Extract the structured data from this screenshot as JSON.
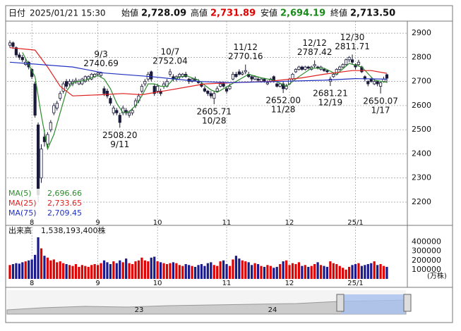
{
  "header": {
    "date_label": "日付",
    "date": "2025/01/21 15:30",
    "open_label": "始値",
    "open": "2,728.09",
    "high_label": "高値",
    "high": "2,731.89",
    "low_label": "安値",
    "low": "2,694.19",
    "close_label": "終値",
    "close": "2,713.50"
  },
  "chart_data": [
    {
      "type": "candlestick",
      "ylim": [
        2127,
        2950
      ],
      "yticks": [
        2200,
        2300,
        2400,
        2500,
        2600,
        2700,
        2800,
        2900
      ],
      "grid": true,
      "up_color": "#ffffff",
      "down_color": "#1a1a3a",
      "xticks": [
        {
          "value": 7,
          "label": "8"
        },
        {
          "value": 28,
          "label": "9"
        },
        {
          "value": 47,
          "label": "10"
        },
        {
          "value": 69,
          "label": "11"
        },
        {
          "value": 89,
          "label": "12"
        },
        {
          "value": 110,
          "label": "25/1"
        }
      ],
      "candles": [
        [
          2850,
          2870,
          2840,
          2860
        ],
        [
          2860,
          2865,
          2835,
          2845
        ],
        [
          2840,
          2845,
          2800,
          2810
        ],
        [
          2810,
          2820,
          2790,
          2800
        ],
        [
          2800,
          2810,
          2780,
          2790
        ],
        [
          2770,
          2795,
          2765,
          2780
        ],
        [
          2780,
          2785,
          2750,
          2760
        ],
        [
          2750,
          2755,
          2710,
          2720
        ],
        [
          2690,
          2700,
          2550,
          2560
        ],
        [
          2520,
          2530,
          2200,
          2230
        ],
        [
          2300,
          2440,
          2280,
          2420
        ],
        [
          2470,
          2500,
          2430,
          2450
        ],
        [
          2440,
          2490,
          2420,
          2480
        ],
        [
          2500,
          2540,
          2490,
          2530
        ],
        [
          2570,
          2610,
          2560,
          2600
        ],
        [
          2590,
          2620,
          2580,
          2610
        ],
        [
          2630,
          2660,
          2620,
          2650
        ],
        [
          2660,
          2700,
          2650,
          2690
        ],
        [
          2700,
          2710,
          2670,
          2680
        ],
        [
          2690,
          2710,
          2680,
          2700
        ],
        [
          2690,
          2710,
          2680,
          2700
        ],
        [
          2700,
          2715,
          2690,
          2705
        ],
        [
          2690,
          2710,
          2685,
          2700
        ],
        [
          2690,
          2715,
          2685,
          2710
        ],
        [
          2700,
          2725,
          2695,
          2720
        ],
        [
          2710,
          2725,
          2700,
          2720
        ],
        [
          2710,
          2735,
          2705,
          2730
        ],
        [
          2720,
          2735,
          2715,
          2730
        ],
        [
          2730,
          2740,
          2720,
          2735
        ],
        [
          2725,
          2740.69,
          2715,
          2735
        ],
        [
          2670,
          2680,
          2640,
          2650
        ],
        [
          2660,
          2670,
          2630,
          2640
        ],
        [
          2630,
          2640,
          2600,
          2610
        ],
        [
          2570,
          2600,
          2560,
          2590
        ],
        [
          2580,
          2590,
          2560,
          2570
        ],
        [
          2560,
          2570,
          2508.2,
          2530
        ],
        [
          2570,
          2600,
          2560,
          2590
        ],
        [
          2580,
          2590,
          2560,
          2570
        ],
        [
          2560,
          2580,
          2550,
          2570
        ],
        [
          2570,
          2590,
          2560,
          2580
        ],
        [
          2600,
          2630,
          2590,
          2620
        ],
        [
          2620,
          2650,
          2610,
          2640
        ],
        [
          2660,
          2690,
          2650,
          2680
        ],
        [
          2690,
          2710,
          2680,
          2700
        ],
        [
          2710,
          2740,
          2700,
          2730
        ],
        [
          2740,
          2745,
          2700,
          2710
        ],
        [
          2680,
          2690,
          2640,
          2650
        ],
        [
          2660,
          2690,
          2650,
          2680
        ],
        [
          2660,
          2670,
          2640,
          2650
        ],
        [
          2680,
          2700,
          2670,
          2690
        ],
        [
          2680,
          2710,
          2675,
          2700
        ],
        [
          2730,
          2752.04,
          2720,
          2740
        ],
        [
          2720,
          2730,
          2700,
          2710
        ],
        [
          2710,
          2725,
          2700,
          2720
        ],
        [
          2720,
          2735,
          2710,
          2730
        ],
        [
          2720,
          2735,
          2715,
          2730
        ],
        [
          2730,
          2740,
          2715,
          2720
        ],
        [
          2710,
          2715,
          2690,
          2700
        ],
        [
          2700,
          2715,
          2695,
          2710
        ],
        [
          2710,
          2720,
          2700,
          2705
        ],
        [
          2700,
          2710,
          2690,
          2695
        ],
        [
          2690,
          2700,
          2675,
          2680
        ],
        [
          2670,
          2680,
          2655,
          2660
        ],
        [
          2660,
          2665,
          2640,
          2650
        ],
        [
          2650,
          2660,
          2630,
          2640
        ],
        [
          2630,
          2660,
          2605.71,
          2650
        ],
        [
          2660,
          2680,
          2655,
          2670
        ],
        [
          2680,
          2700,
          2675,
          2690
        ],
        [
          2690,
          2700,
          2675,
          2680
        ],
        [
          2670,
          2680,
          2650,
          2660
        ],
        [
          2670,
          2690,
          2665,
          2680
        ],
        [
          2710,
          2740,
          2705,
          2730
        ],
        [
          2730,
          2740,
          2715,
          2720
        ],
        [
          2740,
          2750,
          2725,
          2730
        ],
        [
          2730,
          2745,
          2725,
          2735
        ],
        [
          2740,
          2770.16,
          2730,
          2745
        ],
        [
          2730,
          2740,
          2715,
          2720
        ],
        [
          2720,
          2725,
          2700,
          2710
        ],
        [
          2710,
          2725,
          2705,
          2720
        ],
        [
          2710,
          2720,
          2700,
          2705
        ],
        [
          2700,
          2715,
          2695,
          2710
        ],
        [
          2710,
          2715,
          2695,
          2700
        ],
        [
          2690,
          2705,
          2685,
          2695
        ],
        [
          2700,
          2715,
          2695,
          2710
        ],
        [
          2720,
          2725,
          2695,
          2700
        ],
        [
          2690,
          2695,
          2675,
          2680
        ],
        [
          2680,
          2695,
          2675,
          2690
        ],
        [
          2690,
          2700,
          2652,
          2670
        ],
        [
          2670,
          2690,
          2665,
          2680
        ],
        [
          2690,
          2715,
          2685,
          2710
        ],
        [
          2710,
          2735,
          2705,
          2730
        ],
        [
          2740,
          2755,
          2735,
          2750
        ],
        [
          2750,
          2765,
          2745,
          2760
        ],
        [
          2760,
          2765,
          2745,
          2750
        ],
        [
          2750,
          2765,
          2745,
          2760
        ],
        [
          2760,
          2765,
          2750,
          2755
        ],
        [
          2750,
          2765,
          2745,
          2760
        ],
        [
          2765,
          2787.42,
          2755,
          2770
        ],
        [
          2760,
          2765,
          2750,
          2755
        ],
        [
          2750,
          2765,
          2745,
          2760
        ],
        [
          2750,
          2755,
          2740,
          2745
        ],
        [
          2745,
          2750,
          2735,
          2740
        ],
        [
          2700,
          2720,
          2681.21,
          2710
        ],
        [
          2720,
          2735,
          2715,
          2730
        ],
        [
          2730,
          2755,
          2725,
          2750
        ],
        [
          2750,
          2765,
          2745,
          2760
        ],
        [
          2760,
          2775,
          2755,
          2770
        ],
        [
          2770,
          2795,
          2765,
          2790
        ],
        [
          2790,
          2805,
          2780,
          2800
        ],
        [
          2790,
          2811.71,
          2770,
          2780
        ],
        [
          2770,
          2775,
          2750,
          2760
        ],
        [
          2770,
          2790,
          2765,
          2780
        ],
        [
          2760,
          2765,
          2735,
          2740
        ],
        [
          2720,
          2725,
          2700,
          2710
        ],
        [
          2700,
          2705,
          2680,
          2690
        ],
        [
          2710,
          2715,
          2695,
          2700
        ],
        [
          2690,
          2710,
          2685,
          2700
        ],
        [
          2700,
          2705,
          2680,
          2690
        ],
        [
          2680,
          2700,
          2650.07,
          2695
        ],
        [
          2700,
          2720,
          2695,
          2710
        ],
        [
          2728.09,
          2731.89,
          2694.19,
          2713.5
        ]
      ],
      "series": [
        {
          "name": "MA(5)",
          "color": "#2e8b2e",
          "legend_value": "2,696.66",
          "x": [
            4,
            8,
            10,
            12,
            14,
            16,
            18,
            20,
            24,
            28,
            30,
            32,
            34,
            36,
            38,
            40,
            42,
            44,
            46,
            48,
            50,
            52,
            56,
            60,
            64,
            66,
            68,
            72,
            76,
            80,
            84,
            88,
            92,
            96,
            100,
            104,
            108,
            112,
            116,
            120
          ],
          "values": [
            2820,
            2720,
            2560,
            2420,
            2480,
            2570,
            2660,
            2695,
            2705,
            2725,
            2710,
            2670,
            2610,
            2570,
            2575,
            2600,
            2640,
            2690,
            2690,
            2680,
            2680,
            2710,
            2725,
            2705,
            2665,
            2655,
            2670,
            2700,
            2730,
            2715,
            2705,
            2680,
            2720,
            2755,
            2755,
            2730,
            2775,
            2760,
            2705,
            2696.66
          ]
        },
        {
          "name": "MA(25)",
          "color": "#e02020",
          "legend_value": "2,733.65",
          "x": [
            0,
            8,
            12,
            16,
            20,
            29,
            36,
            42,
            51,
            62,
            71,
            82,
            93,
            100,
            109,
            115,
            120
          ],
          "values": [
            2840,
            2830,
            2760,
            2680,
            2640,
            2645,
            2650,
            2645,
            2665,
            2690,
            2695,
            2700,
            2715,
            2730,
            2745,
            2745,
            2733.65
          ]
        },
        {
          "name": "MA(75)",
          "color": "#2030c0",
          "legend_value": "2,709.45",
          "x": [
            0,
            20,
            30,
            45,
            60,
            70,
            85,
            100,
            110,
            120
          ],
          "values": [
            2780,
            2760,
            2735,
            2720,
            2700,
            2695,
            2700,
            2705,
            2712,
            2709.45
          ]
        }
      ],
      "annotations": [
        {
          "x": 29,
          "date": "9/3",
          "value": 2740.69,
          "side": "above"
        },
        {
          "x": 51,
          "date": "10/7",
          "value": 2752.04,
          "side": "above"
        },
        {
          "x": 75,
          "date": "11/12",
          "value": 2770.16,
          "side": "above"
        },
        {
          "x": 97,
          "date": "12/12",
          "value": 2787.42,
          "side": "above"
        },
        {
          "x": 109,
          "date": "12/30",
          "value": 2811.71,
          "side": "above"
        },
        {
          "x": 35,
          "date": "9/11",
          "value": {
            "value": 2508.2,
            "label": "2508.20"
          },
          "side": "below"
        },
        {
          "x": 65,
          "date": "10/28",
          "value": 2605.71,
          "side": "below"
        },
        {
          "x": 87,
          "date": "11/28",
          "value": {
            "value": 2652,
            "label": "2652.00"
          },
          "side": "below"
        },
        {
          "x": 102,
          "date": "12/19",
          "value": 2681.21,
          "side": "below"
        },
        {
          "x": 118,
          "date": "1/17",
          "value": 2650.07,
          "side": "below"
        }
      ]
    },
    {
      "type": "bar",
      "title": "出来高",
      "total": "1,538,193,400株",
      "unit": "(万株)",
      "ylim": [
        0,
        480000
      ],
      "yticks": [
        100000,
        200000,
        300000,
        400000
      ],
      "up_color": "#e00000",
      "down_color": "#1a1a8c",
      "values": [
        150000,
        160000,
        170000,
        165000,
        180000,
        190000,
        200000,
        210000,
        260000,
        450000,
        330000,
        250000,
        230000,
        200000,
        210000,
        180000,
        190000,
        170000,
        160000,
        150000,
        140000,
        160000,
        130000,
        150000,
        140000,
        130000,
        150000,
        160000,
        150000,
        170000,
        200000,
        180000,
        160000,
        190000,
        170000,
        200000,
        180000,
        220000,
        170000,
        160000,
        190000,
        200000,
        230000,
        200000,
        190000,
        230000,
        240000,
        190000,
        180000,
        170000,
        160000,
        170000,
        180000,
        170000,
        150000,
        140000,
        160000,
        150000,
        140000,
        130000,
        150000,
        160000,
        140000,
        170000,
        180000,
        150000,
        140000,
        190000,
        200000,
        160000,
        140000,
        210000,
        250000,
        220000,
        200000,
        190000,
        180000,
        150000,
        170000,
        160000,
        140000,
        130000,
        150000,
        140000,
        120000,
        130000,
        160000,
        190000,
        200000,
        150000,
        170000,
        160000,
        180000,
        140000,
        150000,
        130000,
        140000,
        160000,
        180000,
        150000,
        140000,
        130000,
        190000,
        170000,
        160000,
        140000,
        120000,
        100000,
        130000,
        150000,
        160000,
        170000,
        140000,
        150000,
        160000,
        170000,
        190000,
        150000,
        160000,
        140000,
        130000
      ]
    }
  ],
  "navigator": {
    "labels": [
      "23",
      "24"
    ]
  }
}
